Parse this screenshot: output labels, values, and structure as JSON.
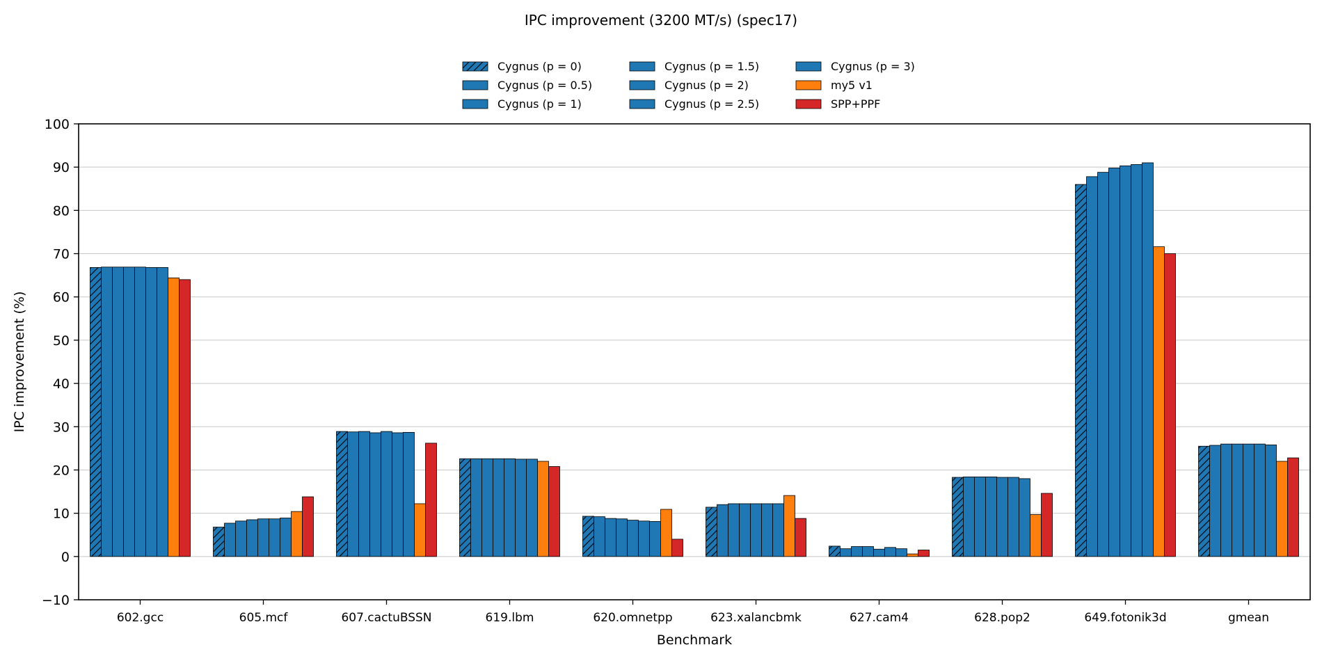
{
  "chart_data": {
    "type": "bar",
    "title": "IPC improvement (3200 MT/s) (spec17)",
    "xlabel": "Benchmark",
    "ylabel": "IPC improvement (%)",
    "ylim": [
      -10,
      100
    ],
    "yticks": [
      -10,
      0,
      10,
      20,
      30,
      40,
      50,
      60,
      70,
      80,
      90,
      100
    ],
    "grid": "horizontal",
    "legend_position": "top-center",
    "categories": [
      "602.gcc",
      "605.mcf",
      "607.cactuBSSN",
      "619.lbm",
      "620.omnetpp",
      "623.xalancbmk",
      "627.cam4",
      "628.pop2",
      "649.fotonik3d",
      "gmean"
    ],
    "series": [
      {
        "name": "Cygnus (p = 0)",
        "color": "#1f77b4",
        "hatch": true,
        "values": [
          66.8,
          6.8,
          28.9,
          22.6,
          9.3,
          11.4,
          2.4,
          18.3,
          86.0,
          25.5
        ]
      },
      {
        "name": "Cygnus (p = 0.5)",
        "color": "#1f77b4",
        "hatch": false,
        "values": [
          66.9,
          7.7,
          28.8,
          22.6,
          9.2,
          12.0,
          1.8,
          18.4,
          87.8,
          25.7
        ]
      },
      {
        "name": "Cygnus (p = 1)",
        "color": "#1f77b4",
        "hatch": false,
        "values": [
          66.9,
          8.2,
          28.9,
          22.6,
          8.8,
          12.2,
          2.3,
          18.4,
          88.8,
          26.0
        ]
      },
      {
        "name": "Cygnus (p = 1.5)",
        "color": "#1f77b4",
        "hatch": false,
        "values": [
          66.9,
          8.5,
          28.6,
          22.6,
          8.7,
          12.2,
          2.3,
          18.4,
          89.8,
          26.0
        ]
      },
      {
        "name": "Cygnus (p = 2)",
        "color": "#1f77b4",
        "hatch": false,
        "values": [
          66.9,
          8.7,
          28.9,
          22.6,
          8.4,
          12.2,
          1.7,
          18.3,
          90.3,
          26.0
        ]
      },
      {
        "name": "Cygnus (p = 2.5)",
        "color": "#1f77b4",
        "hatch": false,
        "values": [
          66.8,
          8.7,
          28.6,
          22.5,
          8.2,
          12.2,
          2.1,
          18.3,
          90.6,
          26.0
        ]
      },
      {
        "name": "Cygnus (p = 3)",
        "color": "#1f77b4",
        "hatch": false,
        "values": [
          66.8,
          8.9,
          28.7,
          22.5,
          8.1,
          12.2,
          1.8,
          18.0,
          91.0,
          25.8
        ]
      },
      {
        "name": "my5 v1",
        "color": "#ff7f0e",
        "hatch": false,
        "values": [
          64.4,
          10.4,
          12.2,
          22.0,
          10.9,
          14.1,
          0.6,
          9.7,
          71.6,
          22.0
        ]
      },
      {
        "name": "SPP+PPF",
        "color": "#d62728",
        "hatch": false,
        "values": [
          64.0,
          13.8,
          26.2,
          20.8,
          4.0,
          8.8,
          1.5,
          14.6,
          70.0,
          22.8
        ]
      }
    ]
  }
}
